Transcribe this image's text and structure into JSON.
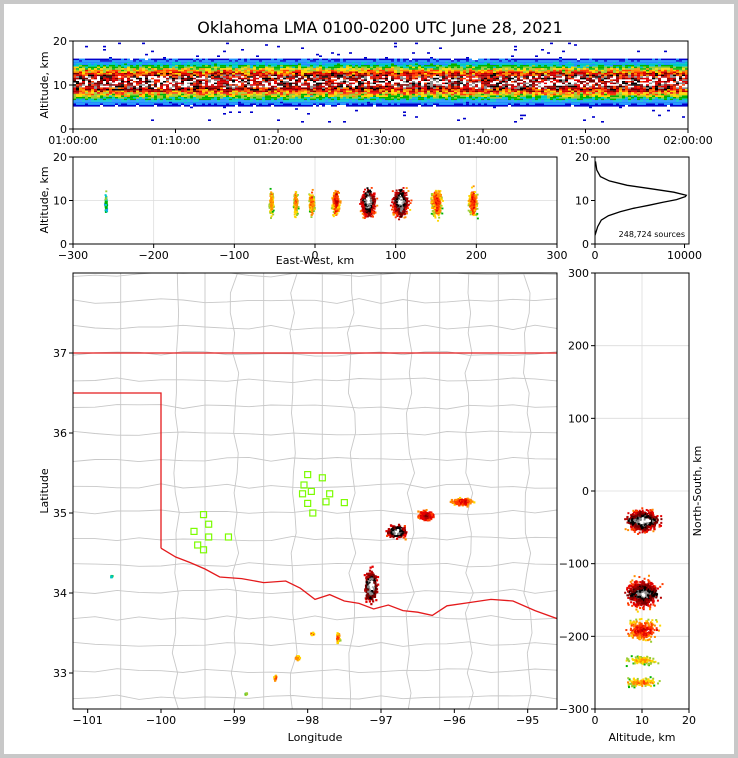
{
  "chart_data": [
    {
      "id": "time-height",
      "type": "heatmap",
      "title": "Oklahoma LMA 0100-0200 UTC June 28, 2021",
      "ylabel": "Altitude, km",
      "xlabel": "",
      "xticks": [
        "01:00:00",
        "01:10:00",
        "01:20:00",
        "01:30:00",
        "01:40:00",
        "01:50:00",
        "02:00:00"
      ],
      "yticks": [
        0,
        10,
        20
      ],
      "ylim": [
        0,
        20
      ],
      "grid": false
    },
    {
      "id": "east-west-altitude",
      "type": "heatmap",
      "xlabel": "East-West, km",
      "ylabel": "Altitude, km",
      "xlim": [
        -300,
        300
      ],
      "ylim": [
        0,
        20
      ],
      "xticks": [
        -300,
        -200,
        -100,
        0,
        100,
        200,
        300
      ],
      "yticks": [
        0,
        10,
        20
      ],
      "grid": true,
      "clusters_x_km": [
        -260,
        -55,
        -25,
        -5,
        25,
        65,
        105,
        150,
        195
      ]
    },
    {
      "id": "altitude-histogram",
      "type": "line",
      "xlim": [
        0,
        10500
      ],
      "ylim": [
        0,
        20
      ],
      "xticks": [
        0,
        10000
      ],
      "yticks": [
        0,
        10,
        20
      ],
      "annotation": "248,724 sources",
      "x": [
        0,
        300,
        700,
        1500,
        2800,
        4300,
        6000,
        7600,
        9100,
        10100,
        10200,
        8800,
        6300,
        3600,
        1600,
        600,
        200,
        60
      ],
      "y": [
        2,
        4,
        5.5,
        6.5,
        7.4,
        8.2,
        8.9,
        9.6,
        10.2,
        10.9,
        11.2,
        11.9,
        12.7,
        13.5,
        14.5,
        15.5,
        17,
        19
      ]
    },
    {
      "id": "plan-view-map",
      "type": "heatmap",
      "xlabel": "Longitude",
      "ylabel": "Latitude",
      "xlim": [
        -101.2,
        -94.6
      ],
      "ylim": [
        32.55,
        38.0
      ],
      "xticks": [
        -101,
        -100,
        -99,
        -98,
        -97,
        -96,
        -95
      ],
      "yticks": [
        33,
        34,
        35,
        36,
        37
      ],
      "stations": [
        {
          "lon": -98.0,
          "lat": 35.48
        },
        {
          "lon": -97.8,
          "lat": 35.44
        },
        {
          "lon": -98.05,
          "lat": 35.35
        },
        {
          "lon": -97.95,
          "lat": 35.27
        },
        {
          "lon": -98.07,
          "lat": 35.24
        },
        {
          "lon": -97.7,
          "lat": 35.24
        },
        {
          "lon": -97.75,
          "lat": 35.14
        },
        {
          "lon": -97.5,
          "lat": 35.13
        },
        {
          "lon": -98.0,
          "lat": 35.12
        },
        {
          "lon": -97.93,
          "lat": 35.0
        },
        {
          "lon": -99.42,
          "lat": 34.98
        },
        {
          "lon": -99.35,
          "lat": 34.86
        },
        {
          "lon": -99.55,
          "lat": 34.77
        },
        {
          "lon": -99.35,
          "lat": 34.7
        },
        {
          "lon": -99.08,
          "lat": 34.7
        },
        {
          "lon": -99.5,
          "lat": 34.6
        },
        {
          "lon": -99.42,
          "lat": 34.54
        }
      ]
    },
    {
      "id": "altitude-north-south",
      "type": "heatmap",
      "xlabel": "Altitude, km",
      "ylabel": "North-South, km",
      "xlim": [
        0,
        20
      ],
      "ylim": [
        -300,
        300
      ],
      "xticks": [
        0,
        10,
        20
      ],
      "yticks": [
        -300,
        -200,
        -100,
        0,
        100,
        200,
        300
      ],
      "grid": true
    }
  ],
  "colors": {
    "border": "#e41a1c",
    "counties": "#c8c8c8",
    "station": "#7cfc00",
    "grid": "#dcdcdc"
  }
}
